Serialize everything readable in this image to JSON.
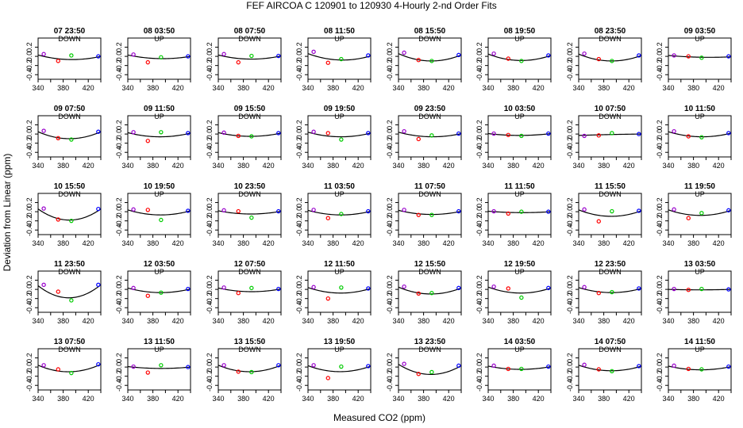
{
  "title": "FEF   AIRCOA C   120901 to 120930   4-Hourly 2-nd Order Fits",
  "xlabel": "Measured CO2 (ppm)",
  "ylabel": "Deviation from Linear (ppm)",
  "colors": {
    "axis": "#000000",
    "curve": "#000000",
    "point_low": "#9900cc",
    "point_mid_low": "#ff0000",
    "point_mid_high": "#00cc00",
    "point_high": "#0000ff"
  },
  "chart_data": {
    "type": "scatter",
    "layout": "small-multiples 5 rows x 8 columns",
    "xlim": [
      340,
      440
    ],
    "ylim": [
      -0.5,
      0.4
    ],
    "xticks": [
      "340",
      "380",
      "420"
    ],
    "minor_xticks": [
      360,
      400,
      440
    ],
    "yticks": [
      "0.2",
      "0.0",
      "-0.2",
      "-0.4"
    ],
    "standard_x": [
      349,
      372,
      393,
      436
    ],
    "series_note": "points per panel: purple, red, green, blue standards; black line = 2nd-order fit",
    "panels": [
      {
        "title": "07 23:50",
        "dir": "DOWN",
        "y": [
          0.05,
          -0.1,
          0.02,
          0.0
        ],
        "fit": [
          0.03,
          -0.07,
          0.0
        ]
      },
      {
        "title": "08 03:50",
        "dir": "UP",
        "y": [
          0.04,
          -0.13,
          -0.02,
          0.0
        ],
        "fit": [
          0.03,
          -0.05,
          0.0
        ]
      },
      {
        "title": "08 07:50",
        "dir": "DOWN",
        "y": [
          0.05,
          -0.13,
          0.01,
          0.01
        ],
        "fit": [
          0.03,
          -0.06,
          0.01
        ]
      },
      {
        "title": "08 11:50",
        "dir": "UP",
        "y": [
          0.1,
          -0.14,
          -0.06,
          0.02
        ],
        "fit": [
          0.06,
          -0.08,
          0.01
        ]
      },
      {
        "title": "08 15:50",
        "dir": "DOWN",
        "y": [
          0.08,
          -0.08,
          -0.1,
          0.03
        ],
        "fit": [
          0.06,
          -0.1,
          0.03
        ]
      },
      {
        "title": "08 19:50",
        "dir": "UP",
        "y": [
          0.06,
          -0.05,
          -0.1,
          0.02
        ],
        "fit": [
          0.05,
          -0.09,
          0.02
        ]
      },
      {
        "title": "08 23:50",
        "dir": "DOWN",
        "y": [
          0.06,
          -0.06,
          -0.1,
          0.02
        ],
        "fit": [
          0.05,
          -0.1,
          0.02
        ]
      },
      {
        "title": "09 03:50",
        "dir": "UP",
        "y": [
          0.02,
          0.0,
          -0.03,
          0.0
        ],
        "fit": [
          0.02,
          -0.02,
          -0.01
        ]
      },
      {
        "title": "09 07:50",
        "dir": "DOWN",
        "y": [
          0.07,
          -0.09,
          -0.12,
          0.05
        ],
        "fit": [
          0.05,
          -0.1,
          0.05
        ]
      },
      {
        "title": "09 11:50",
        "dir": "UP",
        "y": [
          0.04,
          -0.15,
          0.04,
          0.02
        ],
        "fit": [
          0.03,
          -0.06,
          0.02
        ]
      },
      {
        "title": "09 15:50",
        "dir": "DOWN",
        "y": [
          0.03,
          -0.04,
          -0.05,
          0.02
        ],
        "fit": [
          0.03,
          -0.05,
          0.02
        ]
      },
      {
        "title": "09 19:50",
        "dir": "UP",
        "y": [
          0.05,
          0.02,
          -0.12,
          0.02
        ],
        "fit": [
          0.04,
          -0.06,
          0.02
        ]
      },
      {
        "title": "09 23:50",
        "dir": "DOWN",
        "y": [
          0.06,
          -0.11,
          -0.03,
          0.01
        ],
        "fit": [
          0.04,
          -0.06,
          0.01
        ]
      },
      {
        "title": "10 03:50",
        "dir": "UP",
        "y": [
          0.01,
          -0.02,
          -0.04,
          0.01
        ],
        "fit": [
          0.01,
          -0.03,
          0.01
        ]
      },
      {
        "title": "10 07:50",
        "dir": "DOWN",
        "y": [
          -0.04,
          -0.03,
          0.02,
          0.0
        ],
        "fit": [
          -0.03,
          -0.01,
          0.0
        ]
      },
      {
        "title": "10 11:50",
        "dir": "UP",
        "y": [
          0.06,
          -0.05,
          -0.07,
          0.02
        ],
        "fit": [
          0.05,
          -0.06,
          0.02
        ]
      },
      {
        "title": "10 15:50",
        "dir": "DOWN",
        "y": [
          0.07,
          -0.17,
          -0.2,
          0.06
        ],
        "fit": [
          0.06,
          -0.18,
          0.06
        ]
      },
      {
        "title": "10 19:50",
        "dir": "UP",
        "y": [
          0.05,
          0.04,
          -0.18,
          0.02
        ],
        "fit": [
          0.04,
          -0.07,
          0.02
        ]
      },
      {
        "title": "10 23:50",
        "dir": "DOWN",
        "y": [
          0.03,
          0.01,
          -0.13,
          0.01
        ],
        "fit": [
          0.02,
          -0.05,
          0.01
        ]
      },
      {
        "title": "11 03:50",
        "dir": "UP",
        "y": [
          0.04,
          -0.14,
          -0.05,
          0.01
        ],
        "fit": [
          0.03,
          -0.07,
          0.01
        ]
      },
      {
        "title": "11 07:50",
        "dir": "DOWN",
        "y": [
          0.04,
          -0.07,
          -0.07,
          0.01
        ],
        "fit": [
          0.03,
          -0.06,
          0.01
        ]
      },
      {
        "title": "11 11:50",
        "dir": "UP",
        "y": [
          0.01,
          -0.04,
          0.0,
          0.0
        ],
        "fit": [
          0.01,
          -0.02,
          0.0
        ]
      },
      {
        "title": "11 15:50",
        "dir": "DOWN",
        "y": [
          0.05,
          -0.21,
          0.01,
          0.02
        ],
        "fit": [
          0.04,
          -0.1,
          0.02
        ]
      },
      {
        "title": "11 19:50",
        "dir": "UP",
        "y": [
          0.05,
          -0.14,
          -0.03,
          0.03
        ],
        "fit": [
          0.04,
          -0.08,
          0.03
        ]
      },
      {
        "title": "11 23:50",
        "dir": "DOWN",
        "y": [
          0.1,
          -0.05,
          -0.24,
          0.1
        ],
        "fit": [
          0.08,
          -0.18,
          0.1
        ]
      },
      {
        "title": "12 03:50",
        "dir": "UP",
        "y": [
          0.03,
          -0.14,
          -0.07,
          0.01
        ],
        "fit": [
          0.03,
          -0.07,
          0.01
        ]
      },
      {
        "title": "12 07:50",
        "dir": "DOWN",
        "y": [
          0.04,
          -0.08,
          0.03,
          0.01
        ],
        "fit": [
          0.03,
          -0.05,
          0.01
        ]
      },
      {
        "title": "12 11:50",
        "dir": "UP",
        "y": [
          0.05,
          -0.2,
          0.04,
          0.02
        ],
        "fit": [
          0.04,
          -0.08,
          0.02
        ]
      },
      {
        "title": "12 15:50",
        "dir": "DOWN",
        "y": [
          0.06,
          -0.09,
          -0.08,
          0.03
        ],
        "fit": [
          0.05,
          -0.1,
          0.03
        ]
      },
      {
        "title": "12 19:50",
        "dir": "UP",
        "y": [
          0.06,
          0.02,
          -0.18,
          0.03
        ],
        "fit": [
          0.05,
          -0.08,
          0.03
        ]
      },
      {
        "title": "12 23:50",
        "dir": "DOWN",
        "y": [
          0.05,
          -0.08,
          -0.06,
          0.02
        ],
        "fit": [
          0.04,
          -0.07,
          0.02
        ]
      },
      {
        "title": "13 03:50",
        "dir": "UP",
        "y": [
          0.01,
          -0.01,
          0.01,
          0.0
        ],
        "fit": [
          0.0,
          -0.01,
          0.0
        ]
      },
      {
        "title": "13 07:50",
        "dir": "DOWN",
        "y": [
          0.04,
          -0.05,
          -0.13,
          0.06
        ],
        "fit": [
          0.04,
          -0.1,
          0.06
        ]
      },
      {
        "title": "13 11:50",
        "dir": "UP",
        "y": [
          0.01,
          -0.12,
          0.04,
          0.0
        ],
        "fit": [
          0.01,
          -0.03,
          0.0
        ]
      },
      {
        "title": "13 15:50",
        "dir": "DOWN",
        "y": [
          0.04,
          -0.1,
          -0.11,
          0.04
        ],
        "fit": [
          0.04,
          -0.1,
          0.04
        ]
      },
      {
        "title": "13 19:50",
        "dir": "UP",
        "y": [
          0.04,
          -0.24,
          0.01,
          0.02
        ],
        "fit": [
          0.03,
          -0.1,
          0.02
        ]
      },
      {
        "title": "13 23:50",
        "dir": "DOWN",
        "y": [
          0.07,
          -0.15,
          -0.11,
          0.03
        ],
        "fit": [
          0.06,
          -0.16,
          0.03
        ]
      },
      {
        "title": "14 03:50",
        "dir": "UP",
        "y": [
          0.03,
          -0.04,
          -0.04,
          0.01
        ],
        "fit": [
          0.02,
          -0.05,
          0.01
        ]
      },
      {
        "title": "14 07:50",
        "dir": "DOWN",
        "y": [
          0.05,
          -0.05,
          -0.09,
          0.02
        ],
        "fit": [
          0.04,
          -0.08,
          0.02
        ]
      },
      {
        "title": "14 11:50",
        "dir": "UP",
        "y": [
          0.03,
          -0.04,
          -0.05,
          0.01
        ],
        "fit": [
          0.02,
          -0.06,
          0.01
        ]
      }
    ]
  }
}
